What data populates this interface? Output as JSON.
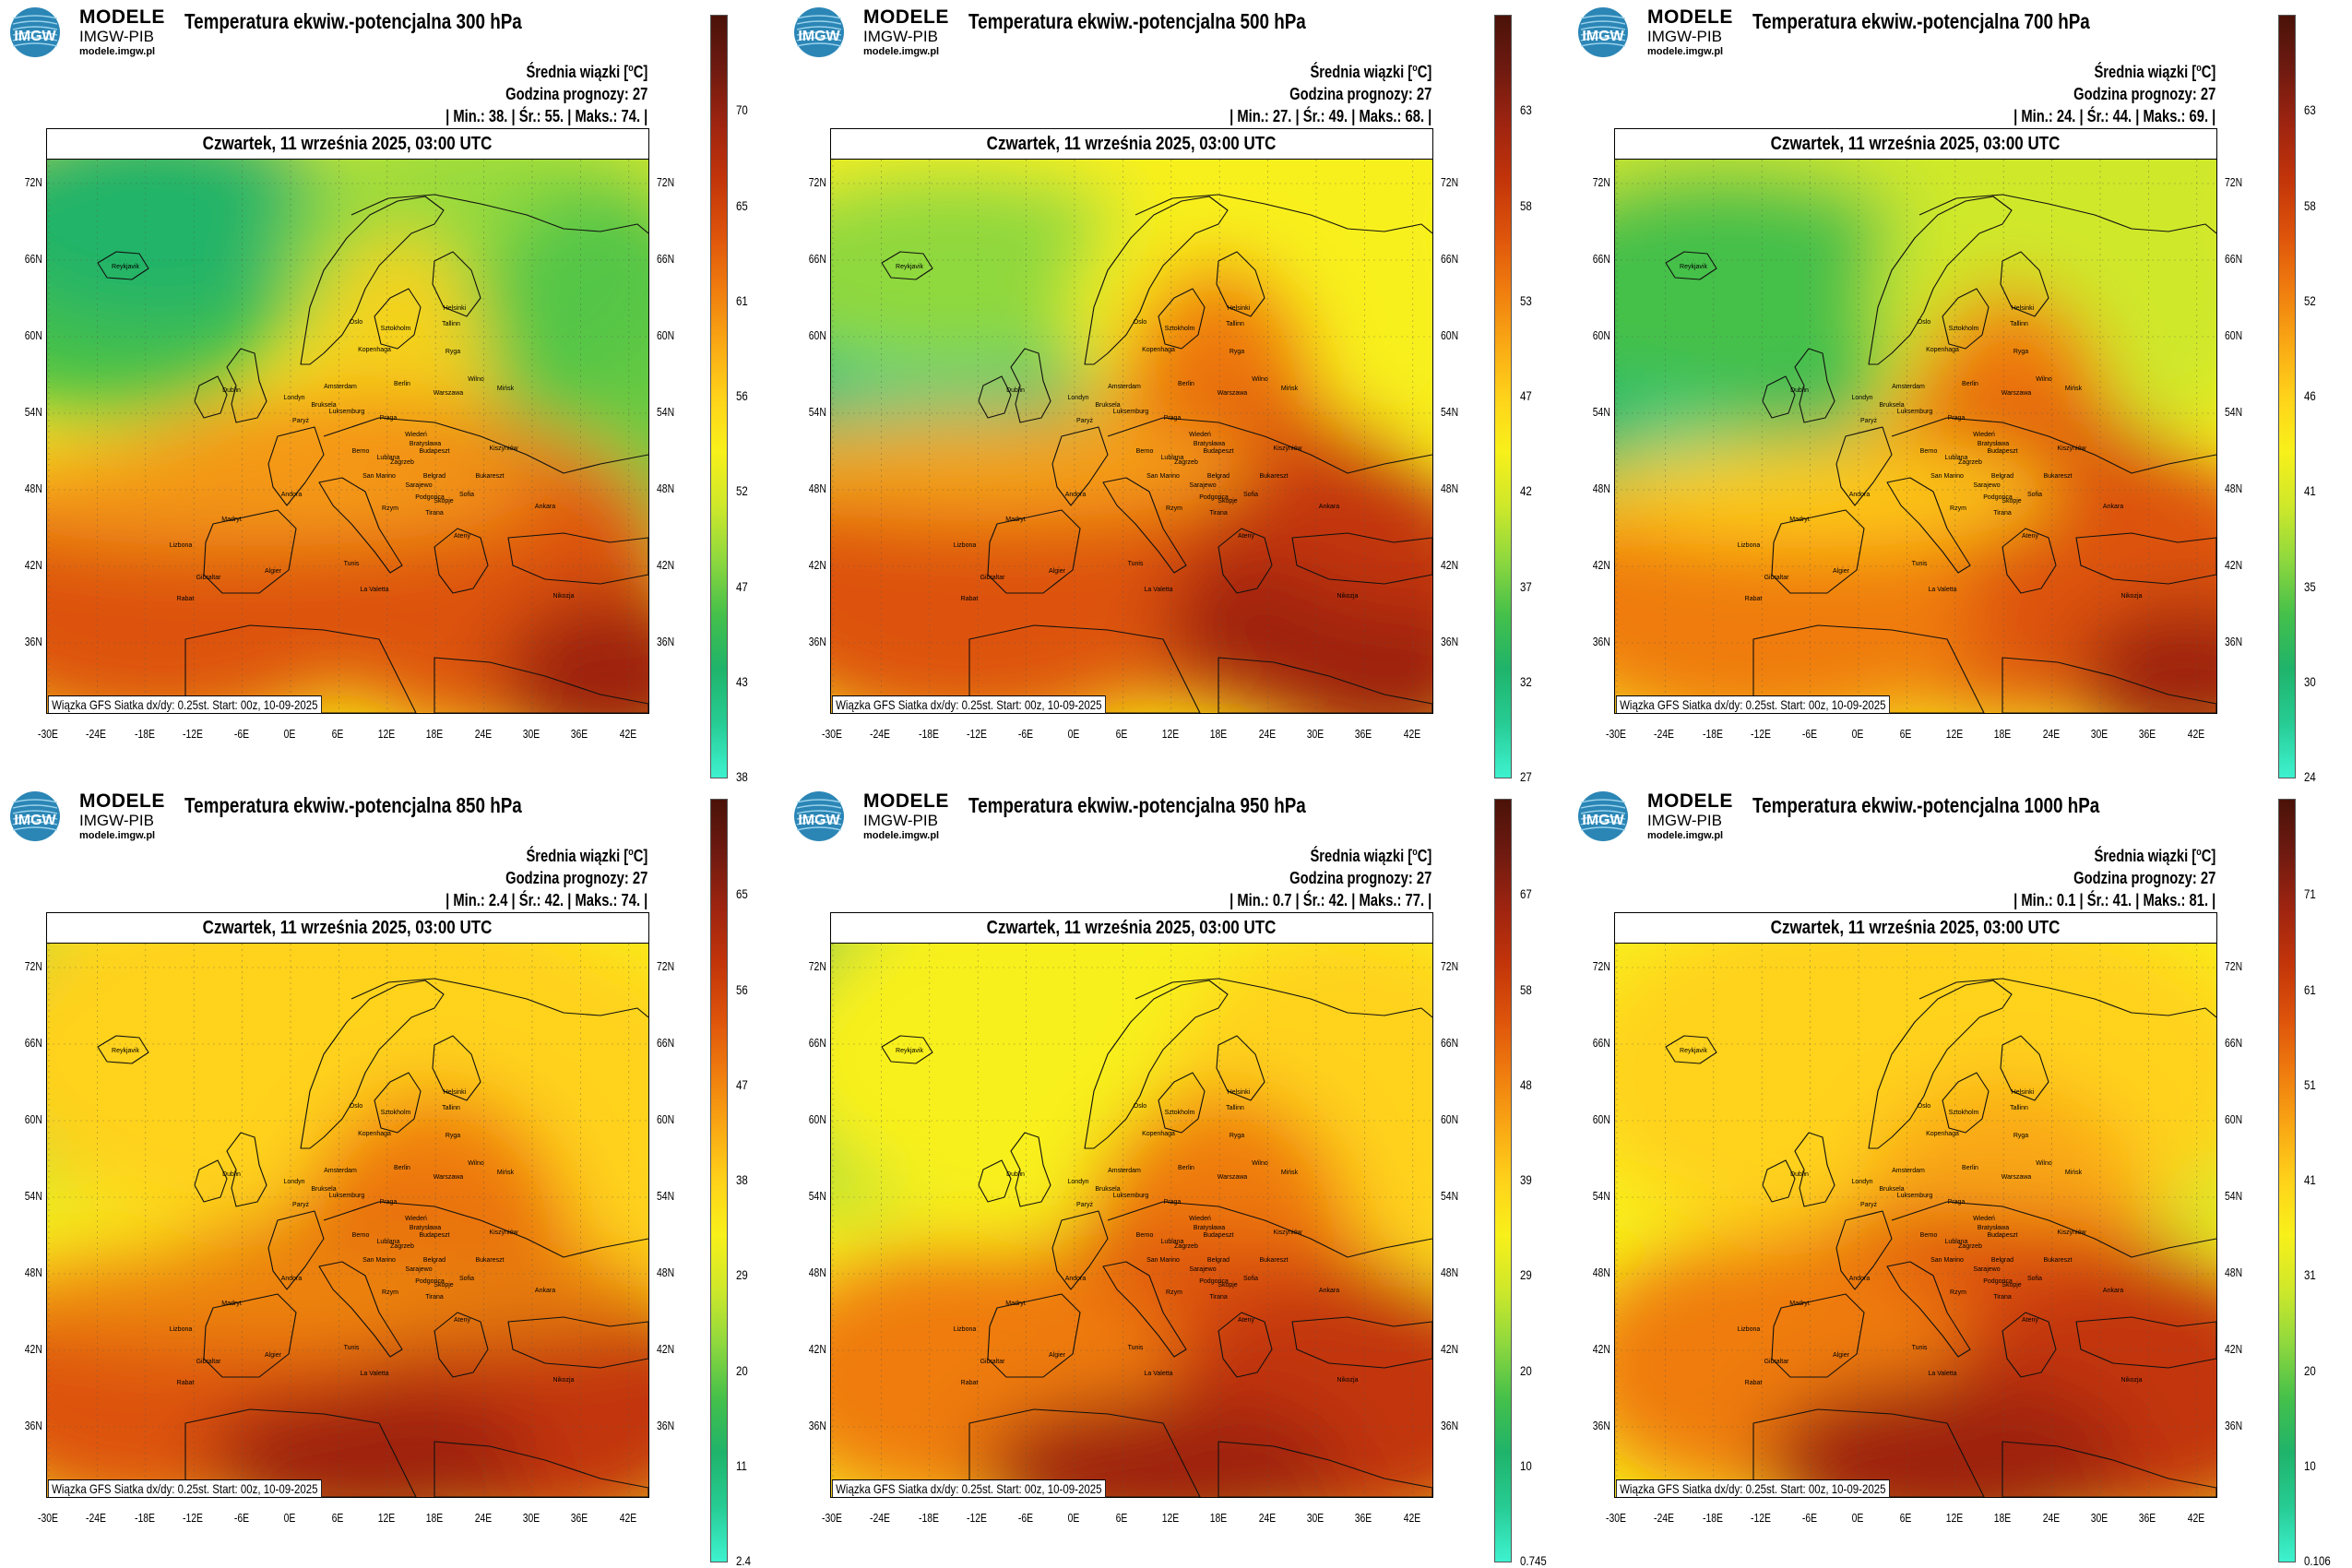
{
  "brand": {
    "line1": "MODELE",
    "line2": "IMGW-PIB",
    "url": "modele.imgw.pl",
    "logo_text": "IMGW"
  },
  "common": {
    "unit_label": "Średnia wiązki [",
    "unit_sup": "o",
    "unit_end": "C]",
    "forecast_hour": "Godzina prognozy: 27",
    "date": "Czwartek, 11 września 2025, 03:00 UTC",
    "footer": "Wiązka GFS Siatka dx/dy: 0.25st. Start: 00z, 10-09-2025",
    "lat_labels": [
      "72N",
      "66N",
      "60N",
      "54N",
      "48N",
      "42N",
      "36N"
    ],
    "lon_labels": [
      "-30E",
      "-24E",
      "-18E",
      "-12E",
      "-6E",
      "0E",
      "6E",
      "12E",
      "18E",
      "24E",
      "30E",
      "36E",
      "42E"
    ],
    "cities": [
      "Helsinki",
      "Oslo",
      "Sztokholm",
      "Tallinn",
      "Ryga",
      "Kopenhaga",
      "Wilno",
      "Mińsk",
      "Berlin",
      "Warszawa",
      "Amsterdam",
      "Londyn",
      "Bruksela",
      "Luksemburg",
      "Paryż",
      "Praga",
      "Wiedeń",
      "Bratysława",
      "Budapeszt",
      "Kiszyniów",
      "Berno",
      "Lublana",
      "Zagrzeb",
      "Belgrad",
      "Bukareszt",
      "San Marino",
      "Sarajewo",
      "Podgorica",
      "Skopje",
      "Sofia",
      "Ateny",
      "Rzym",
      "Tirana",
      "Andora",
      "Madryt",
      "Lizbona",
      "Gibraltar",
      "Algier",
      "Tunis",
      "La Valetta",
      "Rabat",
      "Ankara",
      "Nikozja",
      "Reykjavik",
      "Dublin"
    ]
  },
  "colors": {
    "scale": [
      "#3ef2d0",
      "#27cc94",
      "#1fb36a",
      "#45c04a",
      "#8fd83e",
      "#cfe82a",
      "#f8f01a",
      "#ffd21a",
      "#f9a714",
      "#ef7b0e",
      "#dd520b",
      "#c2340a",
      "#9e2410",
      "#6f1a10",
      "#4a1208"
    ]
  },
  "panels": [
    {
      "title": "Temperatura ekwiw.-potencjalna 300 hPa",
      "min": "38.",
      "avg": "55.",
      "max": "74.",
      "cbar_ticks": [
        "70",
        "65",
        "61",
        "56",
        "52",
        "47",
        "43",
        "38"
      ]
    },
    {
      "title": "Temperatura ekwiw.-potencjalna 500 hPa",
      "min": "27.",
      "avg": "49.",
      "max": "68.",
      "cbar_ticks": [
        "63",
        "58",
        "53",
        "47",
        "42",
        "37",
        "32",
        "27"
      ]
    },
    {
      "title": "Temperatura ekwiw.-potencjalna 700 hPa",
      "min": "24.",
      "avg": "44.",
      "max": "69.",
      "cbar_ticks": [
        "63",
        "58",
        "52",
        "46",
        "41",
        "35",
        "30",
        "24"
      ]
    },
    {
      "title": "Temperatura ekwiw.-potencjalna 850 hPa",
      "min": "2.4",
      "avg": "42.",
      "max": "74.",
      "cbar_ticks": [
        "65",
        "56",
        "47",
        "38",
        "29",
        "20",
        "11",
        "2.4"
      ]
    },
    {
      "title": "Temperatura ekwiw.-potencjalna 950 hPa",
      "min": "0.7",
      "avg": "42.",
      "max": "77.",
      "cbar_ticks": [
        "67",
        "58",
        "48",
        "39",
        "29",
        "20",
        "10",
        "0.745"
      ]
    },
    {
      "title": "Temperatura ekwiw.-potencjalna 1000 hPa",
      "min": "0.1",
      "avg": "41.",
      "max": "81.",
      "cbar_ticks": [
        "71",
        "61",
        "51",
        "41",
        "31",
        "20",
        "10",
        "0.106"
      ]
    }
  ]
}
